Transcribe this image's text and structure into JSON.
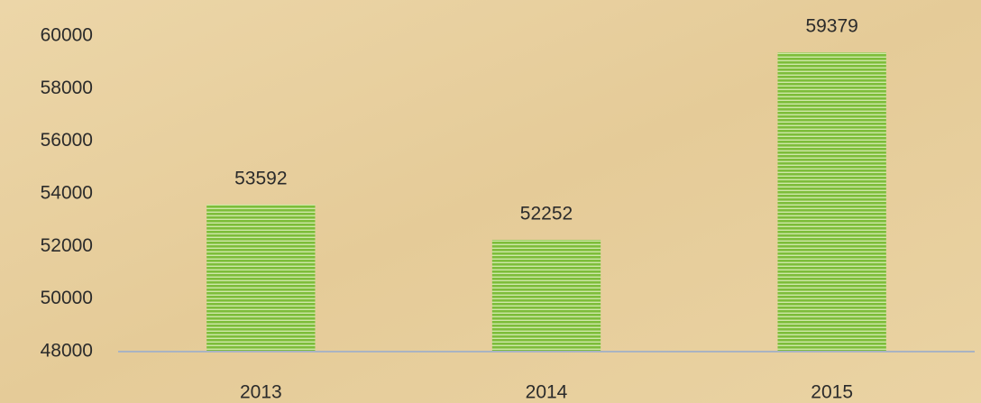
{
  "chart_data": {
    "type": "bar",
    "categories": [
      "2013",
      "2014",
      "2015"
    ],
    "values": [
      53592,
      52252,
      59379
    ],
    "color": "#7dbd3a",
    "ylim": [
      48000,
      60000
    ],
    "yticks": [
      48000,
      50000,
      52000,
      54000,
      56000,
      58000,
      60000
    ],
    "grid": false
  }
}
